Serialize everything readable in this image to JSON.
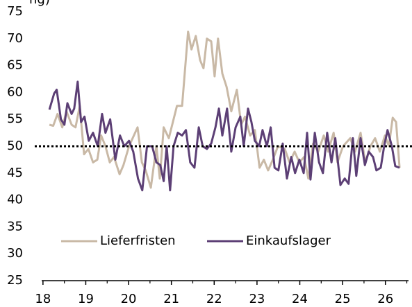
{
  "chart_data": {
    "type": "line",
    "title": "ng)",
    "xlim": [
      17.97,
      26.54
    ],
    "xticks": [
      18,
      19,
      20,
      21,
      22,
      23,
      24,
      25,
      26
    ],
    "xminor_ticks": [
      18.5,
      19.5,
      20.5,
      21.5,
      22.5,
      23.5,
      24.5,
      25.5,
      26.5
    ],
    "ylim": [
      25,
      75
    ],
    "yticks": [
      25,
      30,
      35,
      40,
      45,
      50,
      55,
      60,
      65,
      70,
      75
    ],
    "reference_line": 50,
    "legend": "bottom",
    "series": [
      {
        "name": "Lieferfristen",
        "color": "#c9b9a6",
        "x": [
          18.15,
          18.24,
          18.34,
          18.45,
          18.55,
          18.67,
          18.76,
          18.86,
          18.96,
          19.06,
          19.17,
          19.27,
          19.36,
          19.46,
          19.56,
          19.66,
          19.79,
          19.88,
          20.01,
          20.21,
          20.31,
          20.4,
          20.52,
          20.65,
          20.73,
          20.82,
          20.94,
          21.13,
          21.25,
          21.39,
          21.47,
          21.57,
          21.67,
          21.75,
          21.83,
          21.93,
          22.01,
          22.09,
          22.19,
          22.29,
          22.4,
          22.53,
          22.63,
          22.72,
          22.84,
          22.95,
          23.06,
          23.16,
          23.26,
          23.37,
          23.49,
          23.65,
          23.76,
          23.88,
          23.99,
          24.1,
          24.2,
          24.31,
          24.43,
          24.56,
          24.66,
          24.79,
          24.88,
          25.01,
          25.18,
          25.29,
          25.42,
          25.53,
          25.65,
          25.76,
          25.87,
          25.99,
          26.08,
          26.17,
          26.25,
          26.33
        ],
        "values": [
          54,
          53.8,
          56,
          53.5,
          56.5,
          54,
          53.5,
          57.5,
          48.5,
          49.5,
          47,
          47.5,
          52,
          50,
          47,
          48,
          44.8,
          46.5,
          50,
          53.5,
          47,
          45.5,
          42.3,
          50,
          44,
          53.5,
          51.5,
          57.5,
          57.5,
          71.3,
          68,
          70.5,
          66,
          64.5,
          70,
          69.5,
          63,
          70,
          63.5,
          61,
          56.5,
          60.5,
          54,
          55.5,
          52,
          53,
          46,
          47.5,
          45.5,
          47.5,
          50,
          49.5,
          47,
          49,
          47,
          48,
          44,
          50.5,
          49,
          52,
          49,
          52.5,
          47,
          50,
          51.5,
          49,
          52.5,
          47,
          50,
          51.5,
          49,
          52,
          50,
          55.3,
          54.5,
          46
        ]
      },
      {
        "name": "Einkaufslager",
        "color": "#5c3f75",
        "x": [
          18.15,
          18.26,
          18.32,
          18.42,
          18.5,
          18.57,
          18.67,
          18.73,
          18.81,
          18.89,
          18.97,
          19.07,
          19.17,
          19.28,
          19.38,
          19.46,
          19.57,
          19.69,
          19.8,
          19.9,
          20.01,
          20.11,
          20.22,
          20.32,
          20.43,
          20.55,
          20.65,
          20.74,
          20.82,
          20.89,
          20.97,
          21.05,
          21.15,
          21.25,
          21.34,
          21.44,
          21.54,
          21.64,
          21.73,
          21.83,
          21.93,
          22.03,
          22.11,
          22.19,
          22.3,
          22.4,
          22.5,
          22.61,
          22.69,
          22.79,
          22.87,
          22.95,
          23.05,
          23.13,
          23.23,
          23.32,
          23.41,
          23.5,
          23.6,
          23.7,
          23.8,
          23.89,
          23.99,
          24.09,
          24.17,
          24.25,
          24.35,
          24.45,
          24.54,
          24.64,
          24.74,
          24.83,
          24.95,
          25.05,
          25.14,
          25.24,
          25.32,
          25.42,
          25.52,
          25.61,
          25.71,
          25.79,
          25.89,
          25.97,
          26.05,
          26.15,
          26.23,
          26.33
        ],
        "values": [
          56.8,
          59.8,
          60.5,
          55,
          54,
          58,
          56,
          57,
          62,
          54.5,
          55.5,
          51,
          52.5,
          50,
          56,
          52.5,
          55,
          47.5,
          52,
          50,
          51,
          49,
          44,
          41.8,
          50,
          50,
          47,
          46.5,
          43.5,
          50,
          41.8,
          50,
          52.5,
          52,
          53,
          47,
          46,
          53.5,
          50,
          49.5,
          50.5,
          53.5,
          57,
          52,
          57,
          49,
          53.5,
          55.5,
          50,
          57,
          54.5,
          51,
          50,
          53,
          50,
          53.5,
          46,
          45.5,
          50.5,
          44,
          48,
          45,
          47.5,
          45,
          52.5,
          43.8,
          52.5,
          47,
          45,
          52.5,
          47,
          51.5,
          42.8,
          44,
          43,
          51.5,
          44.5,
          51.5,
          46.5,
          49,
          48,
          45.5,
          46,
          50,
          53,
          50,
          46.3,
          46
        ]
      }
    ]
  }
}
